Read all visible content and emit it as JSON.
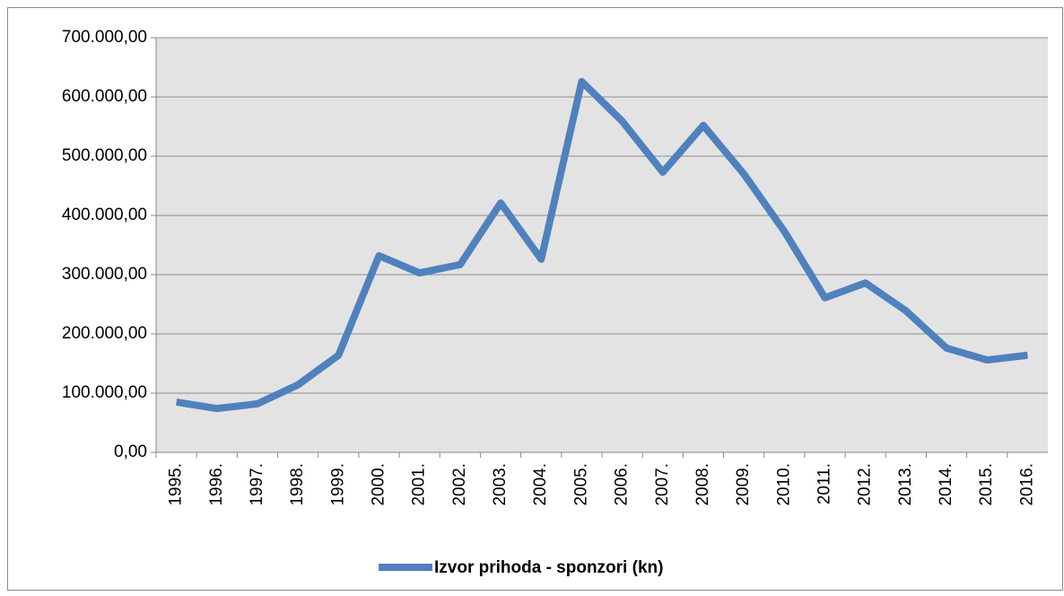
{
  "chart_data": {
    "type": "line",
    "categories": [
      "1995.",
      "1996.",
      "1997.",
      "1998.",
      "1999.",
      "2000.",
      "2001.",
      "2002.",
      "2003.",
      "2004.",
      "2005.",
      "2006.",
      "2007.",
      "2008.",
      "2009.",
      "2010.",
      "2011.",
      "2012.",
      "2013.",
      "2014.",
      "2015.",
      "2016."
    ],
    "series": [
      {
        "name": "Izvor prihoda - sponzori (kn)",
        "color": "#4f81bd",
        "values": [
          85000,
          74000,
          82000,
          114000,
          164000,
          332000,
          303000,
          317000,
          421000,
          326000,
          626000,
          559000,
          473000,
          552000,
          470000,
          373000,
          261000,
          286000,
          239000,
          176000,
          156000,
          164000
        ]
      }
    ],
    "ylim": [
      0,
      700000
    ],
    "yticks": [
      {
        "value": 0,
        "label": "0,00"
      },
      {
        "value": 100000,
        "label": "100.000,00"
      },
      {
        "value": 200000,
        "label": "200.000,00"
      },
      {
        "value": 300000,
        "label": "300.000,00"
      },
      {
        "value": 400000,
        "label": "400.000,00"
      },
      {
        "value": 500000,
        "label": "500.000,00"
      },
      {
        "value": 600000,
        "label": "600.000,00"
      },
      {
        "value": 700000,
        "label": "700.000,00"
      }
    ],
    "grid": true,
    "legend": "bottom"
  }
}
